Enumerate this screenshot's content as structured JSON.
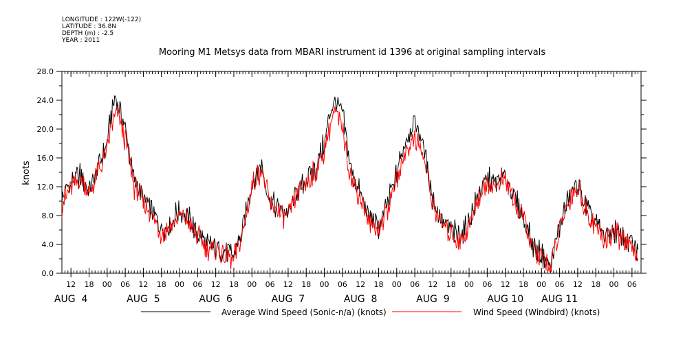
{
  "header": {
    "longitude": "LONGITUDE : 122W(-122)",
    "latitude": "LATITUDE : 36.8N",
    "depth": "DEPTH (m) : -2.5",
    "year": "YEAR : 2011"
  },
  "chart_data": {
    "type": "line",
    "title": "Mooring M1 Metsys data from MBARI instrument id 1396 at original sampling intervals",
    "ylabel": "knots",
    "xlabel": "",
    "ylim": [
      0,
      28
    ],
    "y_ticks": [
      "0.0",
      "4.0",
      "8.0",
      "12.0",
      "16.0",
      "20.0",
      "24.0",
      "28.0"
    ],
    "x_range_hours": [
      -15,
      177
    ],
    "x_hour_ticks": [
      {
        "h": -12,
        "label": "12"
      },
      {
        "h": -6,
        "label": "18"
      },
      {
        "h": 0,
        "label": "00"
      },
      {
        "h": 6,
        "label": "06"
      },
      {
        "h": 12,
        "label": "12"
      },
      {
        "h": 18,
        "label": "18"
      },
      {
        "h": 24,
        "label": "00"
      },
      {
        "h": 30,
        "label": "06"
      },
      {
        "h": 36,
        "label": "12"
      },
      {
        "h": 42,
        "label": "18"
      },
      {
        "h": 48,
        "label": "00"
      },
      {
        "h": 54,
        "label": "06"
      },
      {
        "h": 60,
        "label": "12"
      },
      {
        "h": 66,
        "label": "18"
      },
      {
        "h": 72,
        "label": "00"
      },
      {
        "h": 78,
        "label": "06"
      },
      {
        "h": 84,
        "label": "12"
      },
      {
        "h": 90,
        "label": "18"
      },
      {
        "h": 96,
        "label": "00"
      },
      {
        "h": 102,
        "label": "06"
      },
      {
        "h": 108,
        "label": "12"
      },
      {
        "h": 114,
        "label": "18"
      },
      {
        "h": 120,
        "label": "00"
      },
      {
        "h": 126,
        "label": "06"
      },
      {
        "h": 132,
        "label": "12"
      },
      {
        "h": 138,
        "label": "18"
      },
      {
        "h": 144,
        "label": "00"
      },
      {
        "h": 150,
        "label": "06"
      },
      {
        "h": 156,
        "label": "12"
      },
      {
        "h": 162,
        "label": "18"
      },
      {
        "h": 168,
        "label": "00"
      },
      {
        "h": 174,
        "label": "06"
      }
    ],
    "x_day_labels": [
      {
        "h": -12,
        "label": "AUG  4"
      },
      {
        "h": 12,
        "label": "AUG  5"
      },
      {
        "h": 36,
        "label": "AUG  6"
      },
      {
        "h": 60,
        "label": "AUG  7"
      },
      {
        "h": 84,
        "label": "AUG  8"
      },
      {
        "h": 108,
        "label": "AUG  9"
      },
      {
        "h": 132,
        "label": "AUG 10"
      },
      {
        "h": 150,
        "label": "AUG 11"
      }
    ],
    "series": [
      {
        "name": "Average Wind Speed (Sonic-n/a) (knots)",
        "color": "#000000",
        "x_hours": [
          -15,
          -12,
          -9,
          -6,
          -3,
          0,
          1,
          3,
          6,
          9,
          12,
          15,
          18,
          21,
          24,
          27,
          30,
          33,
          36,
          39,
          42,
          45,
          48,
          51,
          54,
          57,
          60,
          63,
          66,
          69,
          72,
          75,
          78,
          81,
          84,
          87,
          90,
          93,
          96,
          99,
          102,
          105,
          108,
          111,
          114,
          117,
          120,
          123,
          126,
          129,
          132,
          135,
          138,
          141,
          144,
          147,
          150,
          153,
          156,
          159,
          162,
          165,
          168,
          171,
          174,
          176
        ],
        "y": [
          10.0,
          12.5,
          13.5,
          11.5,
          14.5,
          18.0,
          21.5,
          24.5,
          20.0,
          13.0,
          10.5,
          8.5,
          6.0,
          7.0,
          8.8,
          7.5,
          5.5,
          4.0,
          3.5,
          3.0,
          2.5,
          6.0,
          12.5,
          15.0,
          10.0,
          9.0,
          8.0,
          11.5,
          13.0,
          14.5,
          18.0,
          24.0,
          22.0,
          14.0,
          11.0,
          7.5,
          6.5,
          9.5,
          14.0,
          18.5,
          21.0,
          17.5,
          10.0,
          7.5,
          6.0,
          5.0,
          7.0,
          11.0,
          13.0,
          12.5,
          13.5,
          10.5,
          8.0,
          4.0,
          2.5,
          1.0,
          6.5,
          10.5,
          12.5,
          9.0,
          7.0,
          5.0,
          6.0,
          5.0,
          4.0,
          3.0
        ]
      },
      {
        "name": "Wind Speed (Windbird) (knots)",
        "color": "#ff0000",
        "x_hours": [
          -15,
          -12,
          -9,
          -6,
          -3,
          0,
          1,
          3,
          6,
          9,
          12,
          15,
          18,
          21,
          24,
          27,
          30,
          33,
          36,
          39,
          42,
          45,
          48,
          51,
          54,
          57,
          60,
          63,
          66,
          69,
          72,
          75,
          78,
          81,
          84,
          87,
          90,
          93,
          96,
          99,
          102,
          105,
          108,
          111,
          114,
          117,
          120,
          123,
          126,
          129,
          132,
          135,
          138,
          141,
          144,
          147,
          150,
          153,
          156,
          159,
          162,
          165,
          168,
          171,
          174,
          176
        ],
        "y": [
          9.5,
          12.0,
          13.0,
          11.0,
          14.0,
          17.0,
          20.0,
          22.5,
          18.5,
          12.0,
          10.0,
          8.0,
          5.5,
          6.5,
          8.0,
          7.0,
          5.0,
          3.5,
          3.0,
          2.5,
          2.0,
          5.5,
          12.0,
          14.5,
          9.5,
          8.5,
          7.5,
          11.0,
          12.5,
          14.0,
          17.0,
          22.5,
          20.5,
          13.0,
          10.5,
          7.0,
          6.0,
          9.0,
          13.0,
          17.0,
          19.0,
          16.0,
          9.5,
          7.0,
          5.5,
          4.5,
          6.5,
          10.5,
          12.5,
          12.0,
          13.0,
          10.0,
          7.5,
          3.5,
          2.0,
          0.8,
          6.0,
          10.0,
          12.0,
          8.5,
          6.5,
          4.5,
          5.5,
          4.5,
          3.5,
          2.5
        ]
      }
    ],
    "grid": false,
    "legend_position": "bottom"
  }
}
